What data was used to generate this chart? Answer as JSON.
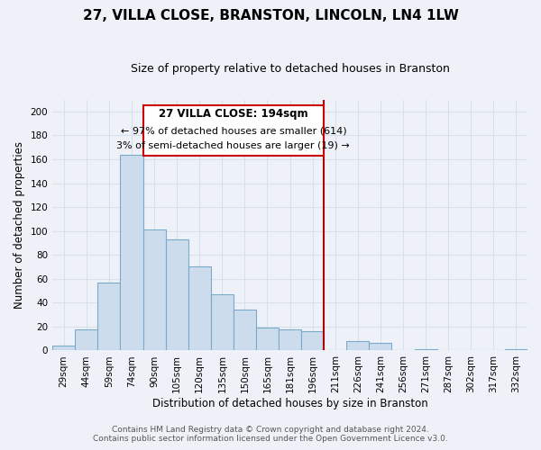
{
  "title": "27, VILLA CLOSE, BRANSTON, LINCOLN, LN4 1LW",
  "subtitle": "Size of property relative to detached houses in Branston",
  "xlabel": "Distribution of detached houses by size in Branston",
  "ylabel": "Number of detached properties",
  "bar_labels": [
    "29sqm",
    "44sqm",
    "59sqm",
    "74sqm",
    "90sqm",
    "105sqm",
    "120sqm",
    "135sqm",
    "150sqm",
    "165sqm",
    "181sqm",
    "196sqm",
    "211sqm",
    "226sqm",
    "241sqm",
    "256sqm",
    "271sqm",
    "287sqm",
    "302sqm",
    "317sqm",
    "332sqm"
  ],
  "bar_values": [
    4,
    18,
    57,
    164,
    101,
    93,
    70,
    47,
    34,
    19,
    18,
    16,
    0,
    8,
    6,
    0,
    1,
    0,
    0,
    0,
    1
  ],
  "bar_color": "#ccdcec",
  "bar_edge_color": "#7aaac8",
  "reference_line_index": 11,
  "annotation_title": "27 VILLA CLOSE: 194sqm",
  "annotation_line1": "← 97% of detached houses are smaller (614)",
  "annotation_line2": "3% of semi-detached houses are larger (19) →",
  "annotation_box_color": "#ffffff",
  "annotation_box_edge": "#cc0000",
  "ref_line_color": "#aa0000",
  "ylim": [
    0,
    210
  ],
  "yticks": [
    0,
    20,
    40,
    60,
    80,
    100,
    120,
    140,
    160,
    180,
    200
  ],
  "footer1": "Contains HM Land Registry data © Crown copyright and database right 2024.",
  "footer2": "Contains public sector information licensed under the Open Government Licence v3.0.",
  "background_color": "#eef2f8",
  "grid_color": "#d8e0ec",
  "title_fontsize": 11,
  "subtitle_fontsize": 9,
  "axis_label_fontsize": 8.5,
  "tick_fontsize": 7.5,
  "footer_fontsize": 6.5
}
